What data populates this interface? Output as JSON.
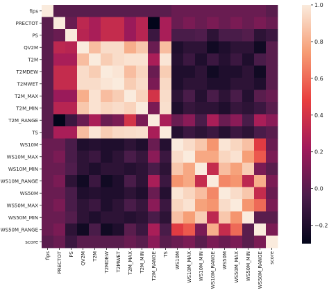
{
  "chart_data": {
    "type": "heatmap",
    "title": "",
    "xlabel": "",
    "ylabel": "",
    "labels": [
      "fips",
      "PRECTOT",
      "PS",
      "QV2M",
      "T2M",
      "T2MDEW",
      "T2MWET",
      "T2M_MAX",
      "T2M_MIN",
      "T2M_RANGE",
      "TS",
      "WS10M",
      "WS10M_MAX",
      "WS10M_MIN",
      "WS10M_RANGE",
      "WS50M",
      "WS50M_MAX",
      "WS50M_MIN",
      "WS50M_RANGE",
      "score"
    ],
    "values": [
      [
        1.0,
        0.0,
        0.0,
        0.0,
        0.0,
        0.0,
        0.0,
        0.0,
        0.0,
        0.0,
        0.0,
        0.05,
        0.05,
        0.05,
        0.05,
        0.05,
        0.05,
        0.05,
        0.05,
        0.0
      ],
      [
        0.0,
        1.0,
        0.05,
        0.32,
        0.25,
        0.35,
        0.35,
        0.2,
        0.3,
        -0.3,
        0.25,
        0.05,
        0.1,
        0.05,
        0.1,
        0.05,
        0.1,
        0.05,
        0.1,
        0.05
      ],
      [
        0.0,
        0.05,
        1.0,
        0.3,
        0.25,
        0.35,
        0.35,
        0.2,
        0.3,
        -0.1,
        0.25,
        -0.05,
        -0.05,
        -0.03,
        -0.15,
        -0.05,
        -0.05,
        -0.02,
        -0.15,
        -0.1
      ],
      [
        0.0,
        0.32,
        0.3,
        1.0,
        0.85,
        0.95,
        0.95,
        0.8,
        0.88,
        0.05,
        0.85,
        -0.2,
        -0.15,
        -0.15,
        -0.25,
        -0.2,
        -0.15,
        -0.15,
        -0.25,
        0.0
      ],
      [
        0.0,
        0.25,
        0.25,
        0.85,
        1.0,
        0.9,
        0.95,
        0.97,
        0.97,
        0.25,
        0.98,
        -0.18,
        -0.1,
        -0.2,
        -0.1,
        -0.18,
        -0.1,
        -0.2,
        -0.05,
        0.0
      ],
      [
        0.0,
        0.35,
        0.35,
        0.95,
        0.9,
        1.0,
        0.98,
        0.85,
        0.93,
        0.05,
        0.9,
        -0.2,
        -0.2,
        -0.15,
        -0.25,
        -0.2,
        -0.2,
        -0.15,
        -0.25,
        0.0
      ],
      [
        0.0,
        0.35,
        0.35,
        0.95,
        0.95,
        0.98,
        1.0,
        0.9,
        0.95,
        0.1,
        0.94,
        -0.2,
        -0.15,
        -0.15,
        -0.2,
        -0.2,
        -0.15,
        -0.15,
        -0.2,
        0.0
      ],
      [
        0.0,
        0.2,
        0.2,
        0.8,
        0.97,
        0.85,
        0.9,
        1.0,
        0.92,
        0.4,
        0.95,
        -0.15,
        -0.05,
        -0.18,
        -0.05,
        -0.15,
        -0.05,
        -0.18,
        0.0,
        0.05
      ],
      [
        0.0,
        0.3,
        0.3,
        0.88,
        0.97,
        0.93,
        0.95,
        0.92,
        1.0,
        0.1,
        0.96,
        -0.2,
        -0.12,
        -0.15,
        -0.15,
        -0.2,
        -0.12,
        -0.15,
        -0.1,
        0.0
      ],
      [
        0.0,
        -0.3,
        -0.1,
        0.05,
        0.25,
        0.05,
        0.1,
        0.4,
        0.1,
        1.0,
        0.25,
        0.05,
        0.15,
        -0.05,
        0.25,
        0.05,
        0.15,
        -0.05,
        0.25,
        0.15
      ],
      [
        0.0,
        0.25,
        0.25,
        0.85,
        0.98,
        0.9,
        0.94,
        0.95,
        0.96,
        0.25,
        1.0,
        -0.18,
        -0.1,
        -0.15,
        -0.1,
        -0.18,
        -0.1,
        -0.15,
        -0.05,
        0.0
      ],
      [
        0.05,
        0.05,
        -0.05,
        -0.2,
        -0.18,
        -0.2,
        -0.2,
        -0.15,
        -0.2,
        0.05,
        -0.18,
        1.0,
        0.95,
        0.88,
        0.72,
        0.98,
        0.93,
        0.86,
        0.45,
        0.05
      ],
      [
        0.05,
        0.1,
        -0.05,
        -0.15,
        -0.1,
        -0.2,
        -0.15,
        -0.05,
        -0.12,
        0.15,
        -0.1,
        0.95,
        1.0,
        0.78,
        0.78,
        0.93,
        0.97,
        0.75,
        0.55,
        0.1
      ],
      [
        0.05,
        0.05,
        -0.03,
        -0.15,
        -0.2,
        -0.15,
        -0.15,
        -0.18,
        -0.15,
        -0.05,
        -0.15,
        0.88,
        0.78,
        1.0,
        0.35,
        0.85,
        0.76,
        0.9,
        0.1,
        0.0
      ],
      [
        0.05,
        0.1,
        -0.15,
        -0.25,
        -0.1,
        -0.25,
        -0.2,
        -0.05,
        -0.15,
        0.25,
        -0.1,
        0.72,
        0.78,
        0.35,
        1.0,
        0.68,
        0.72,
        0.32,
        0.8,
        0.1
      ],
      [
        0.05,
        0.05,
        -0.05,
        -0.2,
        -0.18,
        -0.2,
        -0.2,
        -0.15,
        -0.2,
        0.05,
        -0.18,
        0.98,
        0.93,
        0.85,
        0.68,
        1.0,
        0.95,
        0.88,
        0.35,
        0.05
      ],
      [
        0.05,
        0.1,
        -0.05,
        -0.15,
        -0.1,
        -0.2,
        -0.15,
        -0.05,
        -0.12,
        0.15,
        -0.1,
        0.93,
        0.97,
        0.76,
        0.72,
        0.95,
        1.0,
        0.72,
        0.6,
        0.1
      ],
      [
        0.05,
        0.05,
        -0.02,
        -0.15,
        -0.2,
        -0.15,
        -0.15,
        -0.18,
        -0.15,
        -0.05,
        -0.15,
        0.86,
        0.75,
        0.9,
        0.32,
        0.88,
        0.72,
        1.0,
        0.0,
        0.0
      ],
      [
        0.05,
        0.1,
        -0.15,
        -0.25,
        -0.05,
        -0.25,
        -0.2,
        0.0,
        -0.1,
        0.25,
        -0.05,
        0.45,
        0.55,
        0.1,
        0.8,
        0.35,
        0.6,
        0.0,
        1.0,
        0.1
      ],
      [
        0.0,
        0.05,
        -0.1,
        0.0,
        0.0,
        0.0,
        0.0,
        0.05,
        0.0,
        0.15,
        0.0,
        0.05,
        0.1,
        0.0,
        0.1,
        0.05,
        0.1,
        0.0,
        0.1,
        1.0
      ]
    ],
    "vmin": -0.3,
    "vmax": 1.0,
    "colorbar": {
      "ticks": [
        1.0,
        0.8,
        0.6,
        0.4,
        0.2,
        0.0,
        -0.2
      ],
      "tick_labels": [
        "1.0",
        "0.8",
        "0.6",
        "0.4",
        "0.2",
        "0.0",
        "−0.2"
      ]
    },
    "colormap": "rocket",
    "colormap_stops": [
      "#03051a",
      "#4c1d4b",
      "#a11a5b",
      "#e83f3f",
      "#f69c73",
      "#faebdd"
    ],
    "grid": false,
    "legend": "colorbar-right"
  }
}
